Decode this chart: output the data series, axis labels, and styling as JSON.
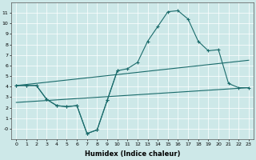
{
  "xlabel": "Humidex (Indice chaleur)",
  "bg_color": "#cde8e8",
  "grid_color": "#ffffff",
  "line_color": "#1a6b6b",
  "xlim": [
    -0.5,
    23.5
  ],
  "ylim": [
    -1.0,
    12.0
  ],
  "yticks": [
    0,
    1,
    2,
    3,
    4,
    5,
    6,
    7,
    8,
    9,
    10,
    11
  ],
  "xticks": [
    0,
    1,
    2,
    3,
    4,
    5,
    6,
    7,
    8,
    9,
    10,
    11,
    12,
    13,
    14,
    15,
    16,
    17,
    18,
    19,
    20,
    21,
    22,
    23
  ],
  "curve1_x": [
    0,
    1,
    2,
    3,
    4,
    5,
    6,
    7,
    8,
    9,
    10,
    11,
    12,
    13,
    14,
    15,
    16,
    17,
    18,
    19,
    20,
    21,
    22,
    23
  ],
  "curve1_y": [
    4.1,
    4.1,
    4.1,
    2.8,
    2.2,
    2.1,
    2.2,
    -0.45,
    -0.1,
    2.7,
    5.5,
    5.7,
    6.3,
    8.3,
    9.7,
    11.1,
    11.2,
    10.4,
    8.3,
    7.4,
    7.5,
    4.3,
    3.9,
    3.9
  ],
  "curve2_x": [
    0,
    1,
    2,
    3,
    4,
    5,
    6,
    7,
    8,
    9,
    10
  ],
  "curve2_y": [
    4.1,
    4.1,
    4.1,
    2.8,
    2.2,
    2.1,
    2.2,
    -0.45,
    -0.1,
    2.7,
    5.5
  ],
  "line3_x": [
    0,
    23
  ],
  "line3_y": [
    4.1,
    6.5
  ],
  "line4_x": [
    0,
    23
  ],
  "line4_y": [
    2.5,
    3.9
  ]
}
